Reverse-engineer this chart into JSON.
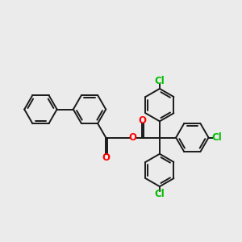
{
  "bg_color": "#ebebeb",
  "bond_color": "#1a1a1a",
  "o_color": "#ff0000",
  "cl_color": "#00bb00",
  "lw": 1.4,
  "fs": 8.5,
  "xlim": [
    -5.0,
    5.2
  ],
  "ylim": [
    -3.4,
    3.0
  ],
  "figsize": [
    3.0,
    3.0
  ],
  "dpi": 100
}
